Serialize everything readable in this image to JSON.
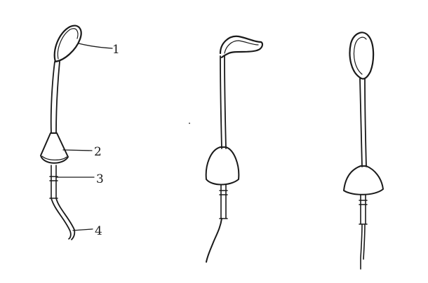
{
  "figure": {
    "labels": [
      "1",
      "2",
      "3",
      "4"
    ],
    "colors": {
      "ink": "#1a1a1a",
      "background": "#ffffff"
    }
  }
}
